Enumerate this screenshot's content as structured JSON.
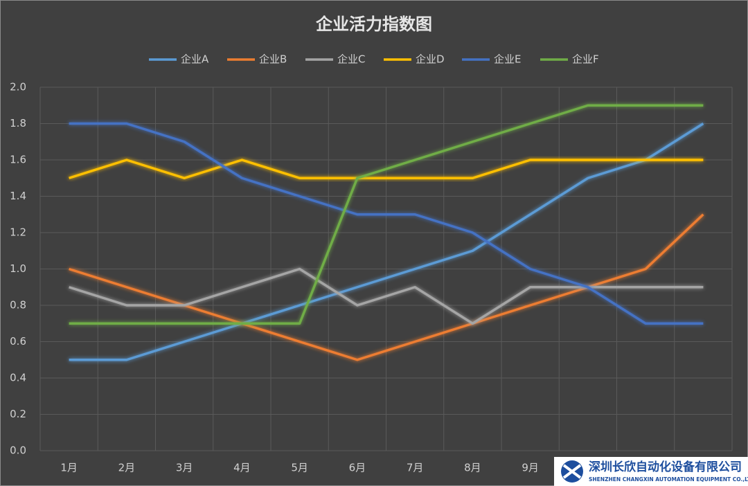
{
  "chart_data": {
    "type": "line",
    "title": "企业活力指数图",
    "categories": [
      "1月",
      "2月",
      "3月",
      "4月",
      "5月",
      "6月",
      "7月",
      "8月",
      "9月",
      null,
      null,
      null
    ],
    "series": [
      {
        "name": "企业A",
        "color": "#5b9bd5",
        "values": [
          0.5,
          0.5,
          0.6,
          0.7,
          0.8,
          0.9,
          1.0,
          1.1,
          1.3,
          1.5,
          1.6,
          1.8
        ]
      },
      {
        "name": "企业B",
        "color": "#ed7d31",
        "values": [
          1.0,
          0.9,
          0.8,
          0.7,
          0.6,
          0.5,
          0.6,
          0.7,
          0.8,
          0.9,
          1.0,
          1.3
        ]
      },
      {
        "name": "企业C",
        "color": "#a5a5a5",
        "values": [
          0.9,
          0.8,
          0.8,
          0.9,
          1.0,
          0.8,
          0.9,
          0.7,
          0.9,
          0.9,
          0.9,
          0.9
        ]
      },
      {
        "name": "企业D",
        "color": "#ffc000",
        "values": [
          1.5,
          1.6,
          1.5,
          1.6,
          1.5,
          1.5,
          1.5,
          1.5,
          1.6,
          1.6,
          1.6,
          1.6
        ]
      },
      {
        "name": "企业E",
        "color": "#4472c4",
        "values": [
          1.8,
          1.8,
          1.7,
          1.5,
          1.4,
          1.3,
          1.3,
          1.2,
          1.0,
          0.9,
          0.7,
          0.7
        ]
      },
      {
        "name": "企业F",
        "color": "#70ad47",
        "values": [
          0.7,
          0.7,
          0.7,
          0.7,
          0.7,
          1.5,
          1.6,
          1.7,
          1.8,
          1.9,
          1.9,
          1.9
        ]
      }
    ],
    "ylim": [
      0,
      2
    ],
    "yticks": [
      {
        "value": 0,
        "label": "0.0"
      },
      0.2,
      0.4,
      0.6,
      0.8,
      {
        "value": 1,
        "label": "1.0"
      },
      1.2,
      1.4,
      1.6,
      1.8,
      {
        "value": 2,
        "label": "2.0"
      }
    ],
    "grid": true,
    "legend": "top"
  },
  "watermark": {
    "name": "深圳长欣自动化设备有限公司",
    "subtitle": "SHENZHEN CHANGXIN AUTOMATION EQUIPMENT CO.,LTD"
  }
}
